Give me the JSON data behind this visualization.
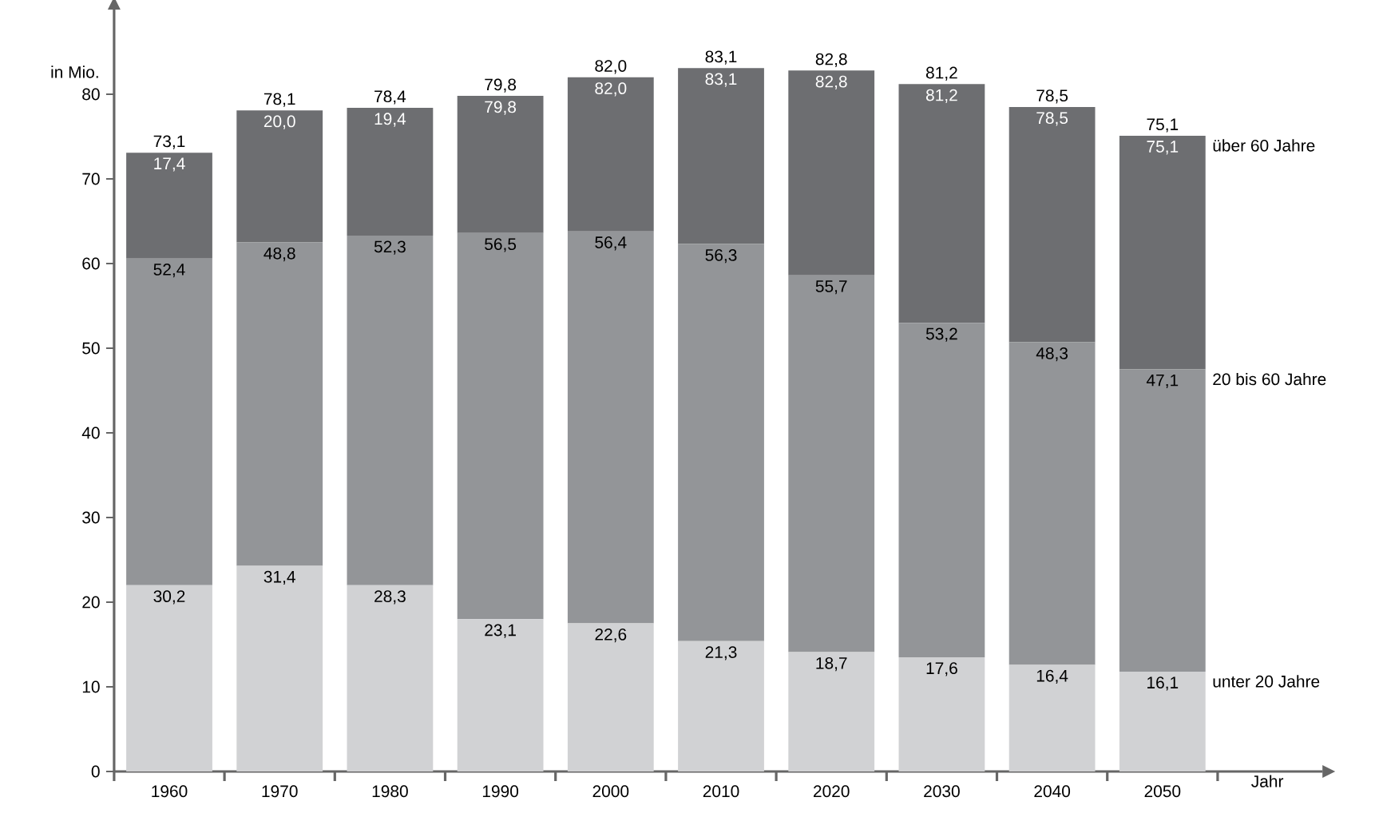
{
  "chart_data": {
    "type": "bar",
    "stacked": true,
    "ylabel": "in Mio.",
    "xlabel": "Jahr",
    "categories": [
      "1960",
      "1970",
      "1980",
      "1990",
      "2000",
      "2010",
      "2020",
      "2030",
      "2040",
      "2050"
    ],
    "series": [
      {
        "name": "unter 20 Jahre",
        "color": "#d1d2d4",
        "values": [
          22.0,
          24.3,
          22.0,
          18.0,
          17.5,
          15.4,
          14.1,
          13.5,
          12.6,
          11.8
        ]
      },
      {
        "name": "20 bis 60 Jahre",
        "color": "#939598",
        "values": [
          38.6,
          38.2,
          41.3,
          45.6,
          46.3,
          46.9,
          44.5,
          39.5,
          38.1,
          35.7
        ]
      },
      {
        "name": "über 60 Jahre",
        "color": "#6d6e71",
        "values": [
          12.5,
          15.6,
          15.1,
          16.2,
          18.2,
          20.8,
          24.2,
          28.2,
          27.8,
          27.6
        ]
      }
    ],
    "totals": [
      "73,1",
      "78,1",
      "78,4",
      "79,8",
      "82,0",
      "83,1",
      "82,8",
      "81,2",
      "78,5",
      "75,1"
    ],
    "annotations": [
      {
        "text": "30,2",
        "x": "1960",
        "y": 22.0
      },
      {
        "text": "31,4",
        "x": "1970",
        "y": 24.3
      },
      {
        "text": "28,3",
        "x": "1980",
        "y": 22.0
      },
      {
        "text": "23,1",
        "x": "1990",
        "y": 18.0
      },
      {
        "text": "22,6",
        "x": "2000",
        "y": 17.5
      },
      {
        "text": "21,3",
        "x": "2010",
        "y": 15.4
      },
      {
        "text": "18,7",
        "x": "2020",
        "y": 14.1
      },
      {
        "text": "17,6",
        "x": "2030",
        "y": 13.5
      },
      {
        "text": "16,4",
        "x": "2040",
        "y": 12.6
      },
      {
        "text": "16,1",
        "x": "2050",
        "y": 11.8
      },
      {
        "text": "52,4",
        "x": "1960",
        "y": 60.6
      },
      {
        "text": "48,8",
        "x": "1970",
        "y": 62.5
      },
      {
        "text": "52,3",
        "x": "1980",
        "y": 63.3
      },
      {
        "text": "56,5",
        "x": "1990",
        "y": 63.6
      },
      {
        "text": "56,4",
        "x": "2000",
        "y": 63.8
      },
      {
        "text": "56,3",
        "x": "2010",
        "y": 62.3
      },
      {
        "text": "55,7",
        "x": "2020",
        "y": 58.6
      },
      {
        "text": "53,2",
        "x": "2030",
        "y": 53.0
      },
      {
        "text": "48,3",
        "x": "2040",
        "y": 50.7
      },
      {
        "text": "47,1",
        "x": "2050",
        "y": 47.5
      },
      {
        "text": "17,4",
        "x": "1960",
        "y": 73.1
      },
      {
        "text": "20,0",
        "x": "1970",
        "y": 78.1
      },
      {
        "text": "19,4",
        "x": "1980",
        "y": 78.4
      },
      {
        "text": "79,8",
        "x": "1990",
        "y": 79.8
      },
      {
        "text": "82,0",
        "x": "2000",
        "y": 82.0
      },
      {
        "text": "83,1",
        "x": "2010",
        "y": 83.1
      },
      {
        "text": "82,8",
        "x": "2020",
        "y": 82.8
      },
      {
        "text": "81,2",
        "x": "2030",
        "y": 81.2
      },
      {
        "text": "78,5",
        "x": "2040",
        "y": 78.5
      },
      {
        "text": "75,1",
        "x": "2050",
        "y": 75.1
      }
    ],
    "ylim": [
      0,
      90
    ],
    "yticks": [
      0,
      10,
      20,
      30,
      40,
      50,
      60,
      70,
      80
    ],
    "legend": false,
    "grid": false
  }
}
